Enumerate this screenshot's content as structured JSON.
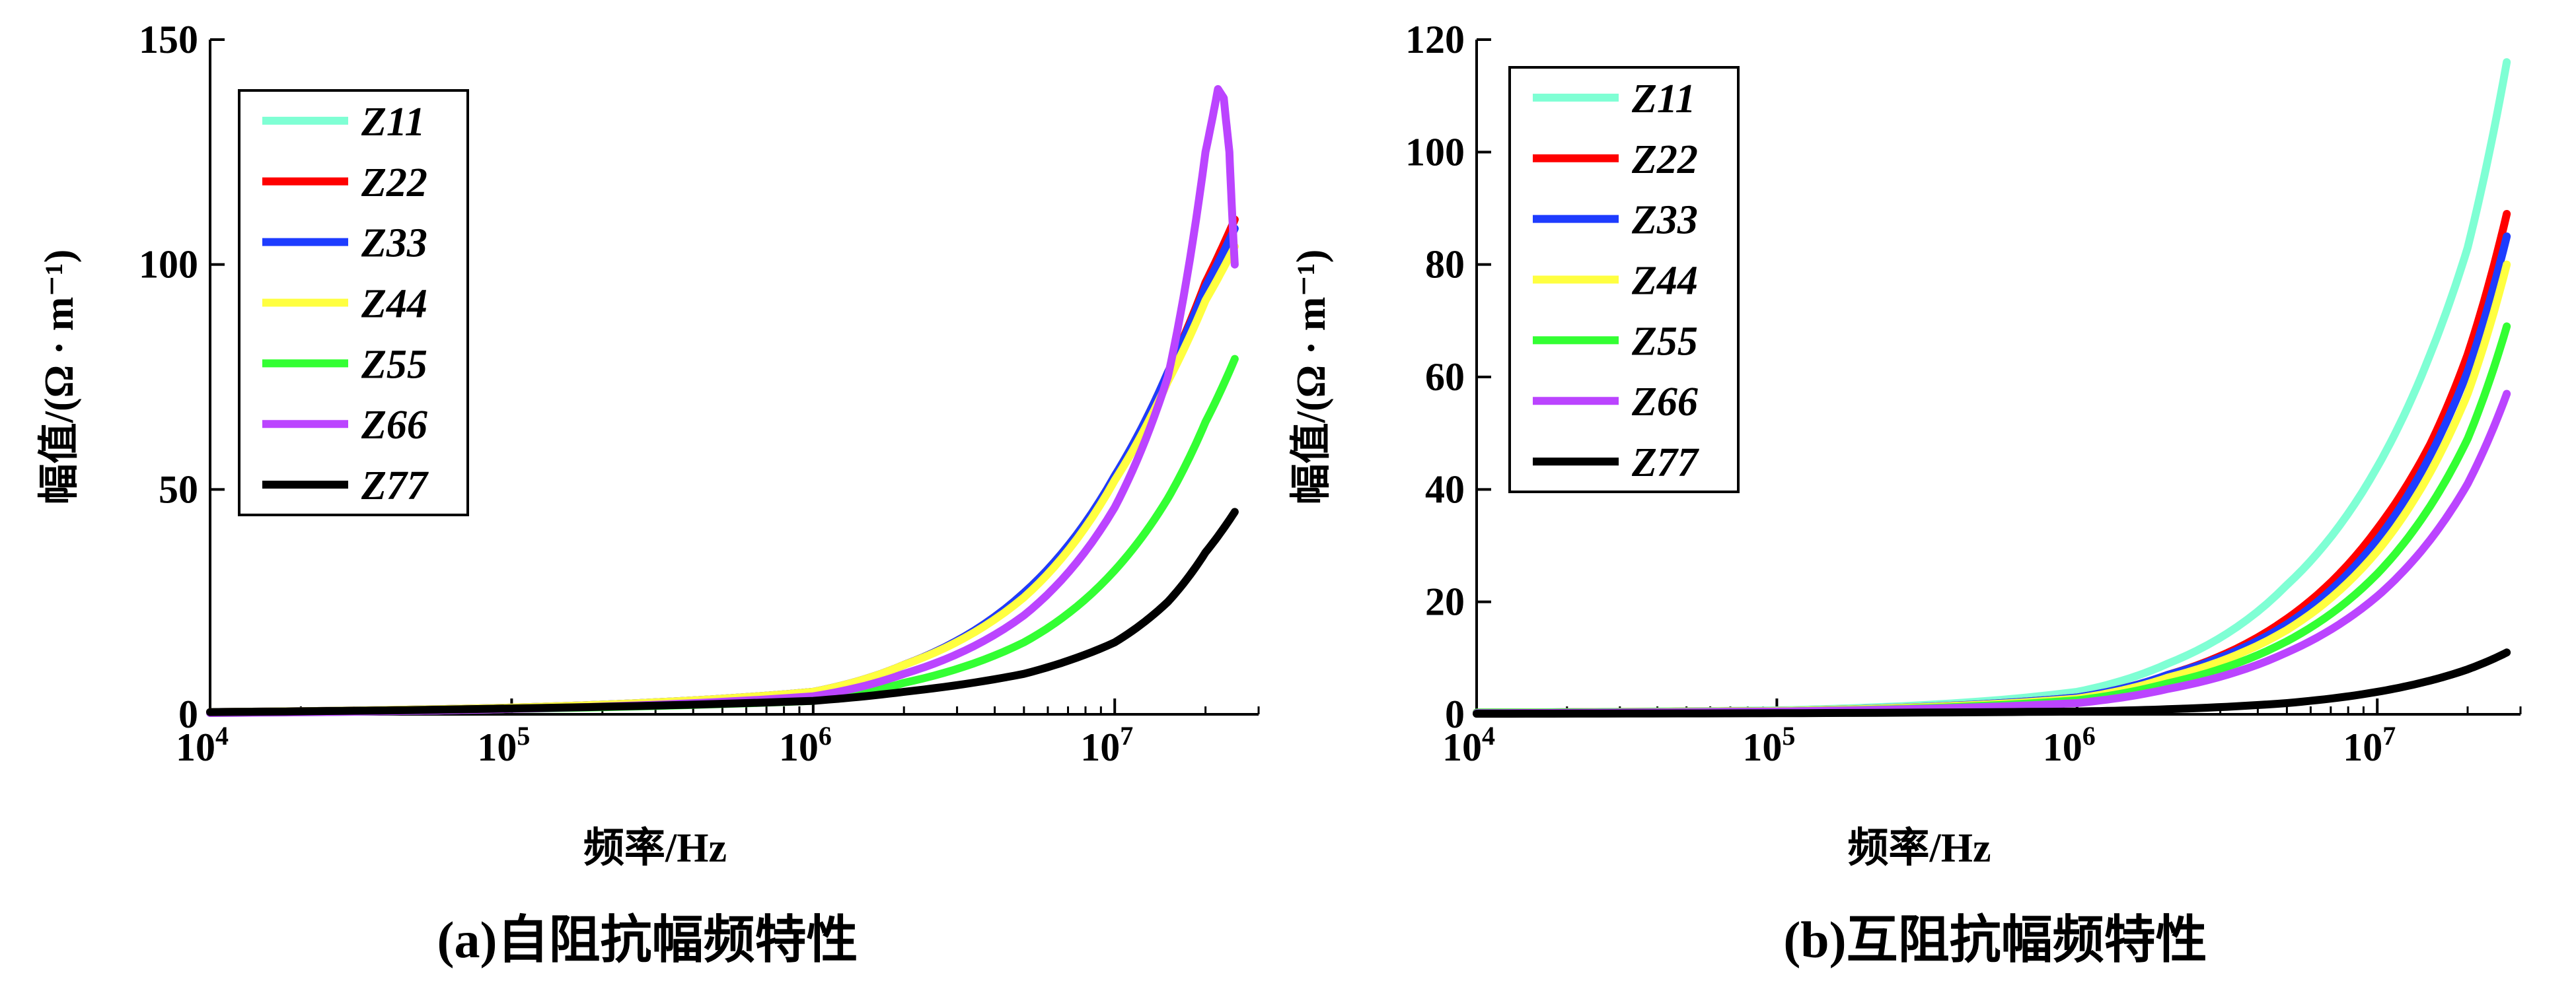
{
  "chart_data": [
    {
      "type": "line",
      "caption": "(a)自阻抗幅频特性",
      "xlabel": "频率/Hz",
      "ylabel": "幅值/(Ω · m⁻¹)",
      "xscale": "log",
      "xlim": [
        10000,
        30000000
      ],
      "ylim": [
        0,
        150
      ],
      "xticks": [
        {
          "value": 10000,
          "base": "10",
          "exp": "4"
        },
        {
          "value": 100000,
          "base": "10",
          "exp": "5"
        },
        {
          "value": 1000000,
          "base": "10",
          "exp": "6"
        },
        {
          "value": 10000000,
          "base": "10",
          "exp": "7"
        }
      ],
      "yticks": [
        "0",
        "50",
        "100",
        "150"
      ],
      "legend_position": "top-left",
      "series": [
        {
          "name": "Z11",
          "color": "#7fffd4",
          "x": [
            10000,
            100000,
            1000000,
            2000000,
            5000000,
            10000000,
            15000000,
            20000000,
            25000000
          ],
          "y": [
            0.5,
            1.5,
            5,
            11,
            27,
            53,
            76,
            96,
            110
          ]
        },
        {
          "name": "Z22",
          "color": "#ff0000",
          "x": [
            10000,
            100000,
            1000000,
            2000000,
            5000000,
            10000000,
            15000000,
            20000000,
            25000000
          ],
          "y": [
            0.5,
            1.5,
            5,
            11,
            27,
            53,
            76,
            96,
            110
          ]
        },
        {
          "name": "Z33",
          "color": "#1e3cff",
          "x": [
            10000,
            100000,
            1000000,
            2000000,
            5000000,
            10000000,
            15000000,
            20000000,
            25000000
          ],
          "y": [
            0.5,
            1.5,
            5,
            11,
            27,
            53,
            76,
            95,
            108
          ]
        },
        {
          "name": "Z44",
          "color": "#ffff40",
          "x": [
            10000,
            100000,
            1000000,
            2000000,
            5000000,
            10000000,
            15000000,
            20000000,
            25000000
          ],
          "y": [
            0.5,
            1.5,
            5,
            11,
            26,
            52,
            74,
            92,
            104
          ]
        },
        {
          "name": "Z55",
          "color": "#33ff33",
          "x": [
            10000,
            100000,
            1000000,
            2000000,
            5000000,
            10000000,
            15000000,
            20000000,
            25000000
          ],
          "y": [
            0.3,
            1.2,
            3,
            7,
            16,
            32,
            48,
            65,
            79
          ]
        },
        {
          "name": "Z66",
          "color": "#bb44ff",
          "x": [
            10000,
            100000,
            1000000,
            2000000,
            5000000,
            10000000,
            15000000,
            20000000,
            22000000,
            23000000,
            24000000,
            25000000
          ],
          "y": [
            0.3,
            1.2,
            4,
            9,
            22,
            46,
            75,
            125,
            139,
            137,
            125,
            100
          ]
        },
        {
          "name": "Z77",
          "color": "#000000",
          "x": [
            10000,
            100000,
            1000000,
            2000000,
            5000000,
            10000000,
            15000000,
            20000000,
            25000000
          ],
          "y": [
            0.5,
            1.3,
            3,
            5,
            9,
            16,
            25,
            36,
            45
          ]
        }
      ]
    },
    {
      "type": "line",
      "caption": "(b)互阻抗幅频特性",
      "xlabel": "频率/Hz",
      "ylabel": "幅值/(Ω · m⁻¹)",
      "xscale": "log",
      "xlim": [
        10000,
        30000000
      ],
      "ylim": [
        0,
        120
      ],
      "xticks": [
        {
          "value": 10000,
          "base": "10",
          "exp": "4"
        },
        {
          "value": 100000,
          "base": "10",
          "exp": "5"
        },
        {
          "value": 1000000,
          "base": "10",
          "exp": "6"
        },
        {
          "value": 10000000,
          "base": "10",
          "exp": "7"
        }
      ],
      "yticks": [
        "0",
        "20",
        "40",
        "60",
        "80",
        "100",
        "120"
      ],
      "legend_position": "top-left",
      "series": [
        {
          "name": "Z11",
          "color": "#7fffd4",
          "x": [
            10000,
            100000,
            1000000,
            2000000,
            5000000,
            10000000,
            15000000,
            20000000,
            27000000
          ],
          "y": [
            0.3,
            0.7,
            4,
            9,
            23,
            44,
            64,
            83,
            116
          ]
        },
        {
          "name": "Z22",
          "color": "#ff0000",
          "x": [
            10000,
            100000,
            1000000,
            2000000,
            5000000,
            10000000,
            15000000,
            20000000,
            27000000
          ],
          "y": [
            0.3,
            0.6,
            3,
            7,
            17,
            33,
            48,
            64,
            89
          ]
        },
        {
          "name": "Z33",
          "color": "#1e3cff",
          "x": [
            10000,
            100000,
            1000000,
            2000000,
            5000000,
            10000000,
            15000000,
            20000000,
            27000000
          ],
          "y": [
            0.3,
            0.6,
            3,
            7,
            16,
            31,
            46,
            61,
            85
          ]
        },
        {
          "name": "Z44",
          "color": "#ffff40",
          "x": [
            10000,
            100000,
            1000000,
            2000000,
            5000000,
            10000000,
            15000000,
            20000000,
            27000000
          ],
          "y": [
            0.3,
            0.6,
            2.8,
            6.5,
            15,
            29,
            43,
            57,
            80
          ]
        },
        {
          "name": "Z55",
          "color": "#33ff33",
          "x": [
            10000,
            100000,
            1000000,
            2000000,
            5000000,
            10000000,
            15000000,
            20000000,
            27000000
          ],
          "y": [
            0.3,
            0.5,
            2.5,
            5.5,
            13,
            25,
            37,
            49,
            69
          ]
        },
        {
          "name": "Z66",
          "color": "#bb44ff",
          "x": [
            10000,
            100000,
            1000000,
            2000000,
            5000000,
            10000000,
            15000000,
            20000000,
            27000000
          ],
          "y": [
            0.2,
            0.5,
            2,
            4.5,
            11,
            21,
            31,
            41,
            57
          ]
        },
        {
          "name": "Z77",
          "color": "#000000",
          "x": [
            10000,
            100000,
            1000000,
            2000000,
            5000000,
            10000000,
            15000000,
            20000000,
            27000000
          ],
          "y": [
            0.1,
            0.2,
            0.5,
            0.9,
            2,
            4,
            6,
            8,
            11
          ]
        }
      ]
    }
  ]
}
